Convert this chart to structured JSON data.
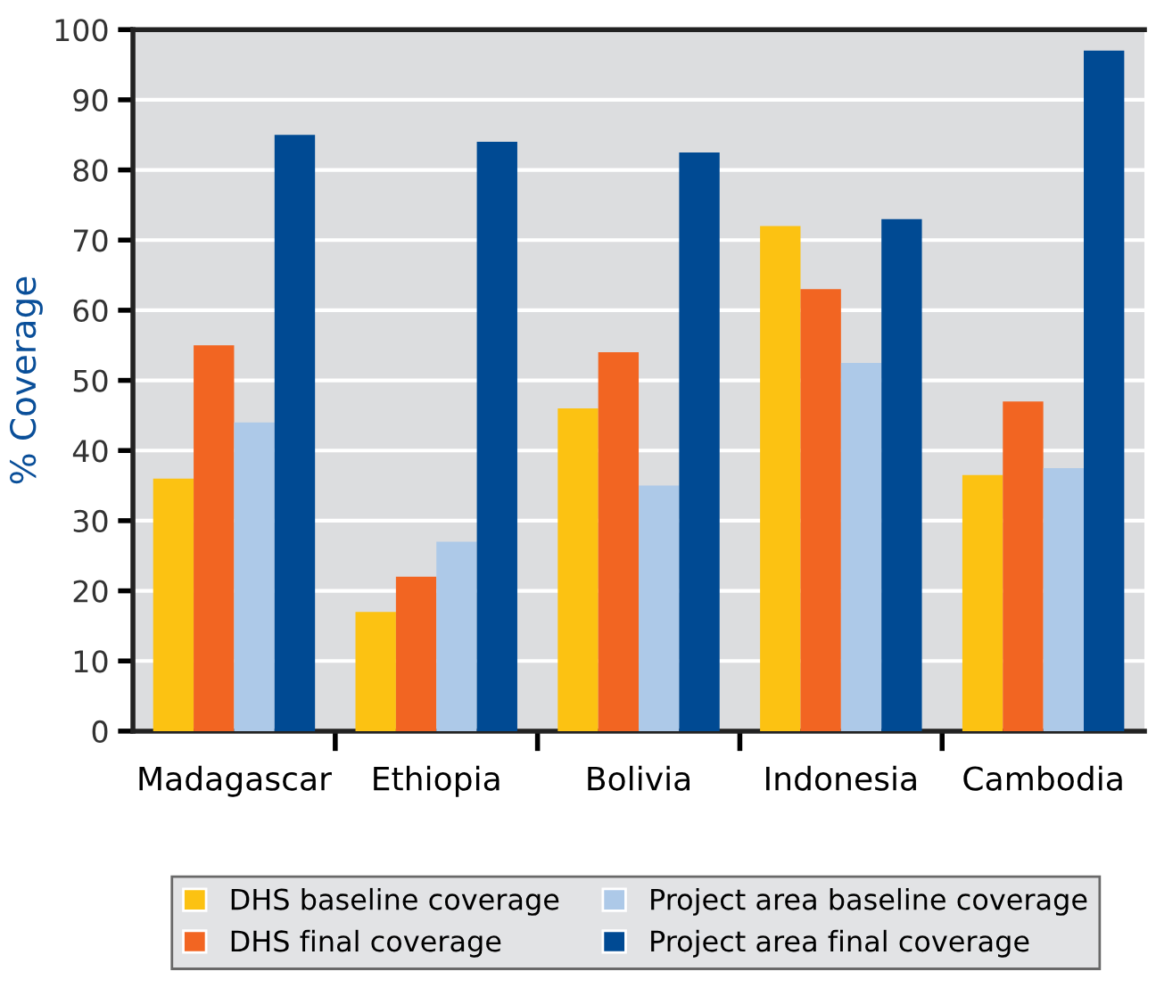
{
  "chart_data": {
    "type": "bar",
    "ylabel": "% Coverage",
    "categories": [
      "Madagascar",
      "Ethiopia",
      "Bolivia",
      "Indonesia",
      "Cambodia"
    ],
    "series": [
      {
        "name": "DHS baseline coverage",
        "color": "#fcc212",
        "values": [
          36,
          17,
          46,
          72,
          36.5
        ]
      },
      {
        "name": "DHS final coverage",
        "color": "#f26522",
        "values": [
          55,
          22,
          54,
          63,
          47
        ]
      },
      {
        "name": "Project area baseline coverage",
        "color": "#adc9e8",
        "values": [
          44,
          27,
          35,
          52.5,
          37.5
        ]
      },
      {
        "name": "Project area final coverage",
        "color": "#004a93",
        "values": [
          85,
          84,
          82.5,
          73,
          97
        ]
      }
    ],
    "ylim": [
      0,
      100
    ],
    "yticks": [
      0,
      10,
      20,
      30,
      40,
      50,
      60,
      70,
      80,
      90,
      100
    ],
    "grid": "y",
    "legend": "bottom"
  }
}
